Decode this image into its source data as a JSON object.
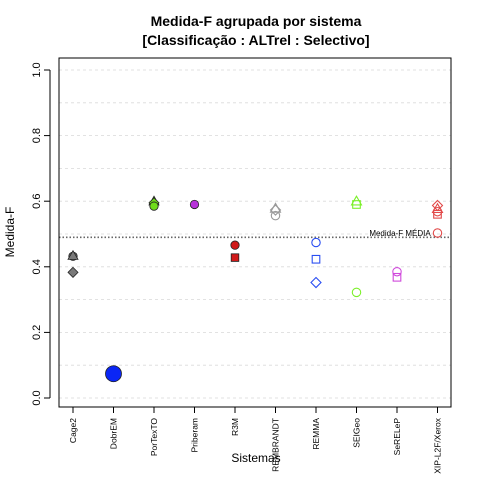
{
  "chart_data": {
    "type": "scatter",
    "title": [
      "Medida-F agrupada por sistema",
      "[Classificação : ALTrel : Selectivo]"
    ],
    "xlabel": "Sistemas",
    "ylabel": "Medida-F",
    "ylim": [
      0,
      1
    ],
    "yticks": [
      "0.0",
      "0.2",
      "0.4",
      "0.6",
      "0.8",
      "1.0"
    ],
    "ytick_values": [
      0,
      0.2,
      0.4,
      0.6,
      0.8,
      1.0
    ],
    "grid": true,
    "categories": [
      "Cage2",
      "DobrEM",
      "PorTexTO",
      "Priberam",
      "R3M",
      "REMBRANDT",
      "REMMA",
      "SEIGeo",
      "SeRELeP",
      "XIP-L2F/Xerox"
    ],
    "mean": {
      "value": 0.49,
      "label": "Medida-F MÉDIA"
    },
    "colors": {
      "Cage2": "#7a7a7a",
      "DobrEM": "#0a26f5",
      "PorTexTO": "#6fdc1a",
      "Priberam": "#b732d9",
      "R3M": "#d01a1a",
      "REMBRANDT": "#9a9a9a",
      "REMMA": "#2a4ef2",
      "SEIGeo": "#7cf02a",
      "SeRELeP": "#d048dc",
      "XIP-L2F/Xerox": "#e24a4a"
    },
    "points": [
      {
        "system": "Cage2",
        "y": 0.432,
        "shape": "circle",
        "filled": true
      },
      {
        "system": "Cage2",
        "y": 0.434,
        "shape": "triangle",
        "filled": true
      },
      {
        "system": "Cage2",
        "y": 0.383,
        "shape": "diamond",
        "filled": true
      },
      {
        "system": "DobrEM",
        "y": 0.074,
        "shape": "circle",
        "filled": true,
        "large": true
      },
      {
        "system": "PorTexTO",
        "y": 0.6,
        "shape": "triangle",
        "filled": true
      },
      {
        "system": "PorTexTO",
        "y": 0.595,
        "shape": "diamond",
        "filled": true
      },
      {
        "system": "PorTexTO",
        "y": 0.585,
        "shape": "circle",
        "filled": true
      },
      {
        "system": "Priberam",
        "y": 0.59,
        "shape": "circle",
        "filled": true
      },
      {
        "system": "R3M",
        "y": 0.466,
        "shape": "circle",
        "filled": true
      },
      {
        "system": "R3M",
        "y": 0.428,
        "shape": "square",
        "filled": true
      },
      {
        "system": "REMBRANDT",
        "y": 0.578,
        "shape": "triangle",
        "filled": false
      },
      {
        "system": "REMBRANDT",
        "y": 0.573,
        "shape": "diamond",
        "filled": false
      },
      {
        "system": "REMBRANDT",
        "y": 0.556,
        "shape": "circle",
        "filled": false
      },
      {
        "system": "REMMA",
        "y": 0.474,
        "shape": "circle",
        "filled": false
      },
      {
        "system": "REMMA",
        "y": 0.423,
        "shape": "square",
        "filled": false
      },
      {
        "system": "REMMA",
        "y": 0.352,
        "shape": "diamond",
        "filled": false
      },
      {
        "system": "SEIGeo",
        "y": 0.6,
        "shape": "triangle",
        "filled": false
      },
      {
        "system": "SEIGeo",
        "y": 0.59,
        "shape": "square",
        "filled": false
      },
      {
        "system": "SEIGeo",
        "y": 0.322,
        "shape": "circle",
        "filled": false
      },
      {
        "system": "SeRELeP",
        "y": 0.385,
        "shape": "circle",
        "filled": false
      },
      {
        "system": "SeRELeP",
        "y": 0.368,
        "shape": "square",
        "filled": false
      },
      {
        "system": "XIP-L2F/Xerox",
        "y": 0.587,
        "shape": "diamond",
        "filled": false
      },
      {
        "system": "XIP-L2F/Xerox",
        "y": 0.577,
        "shape": "triangle",
        "filled": false
      },
      {
        "system": "XIP-L2F/Xerox",
        "y": 0.568,
        "shape": "circle",
        "filled": false
      },
      {
        "system": "XIP-L2F/Xerox",
        "y": 0.56,
        "shape": "square",
        "filled": false
      },
      {
        "system": "XIP-L2F/Xerox",
        "y": 0.503,
        "shape": "circle",
        "filled": false
      }
    ]
  }
}
